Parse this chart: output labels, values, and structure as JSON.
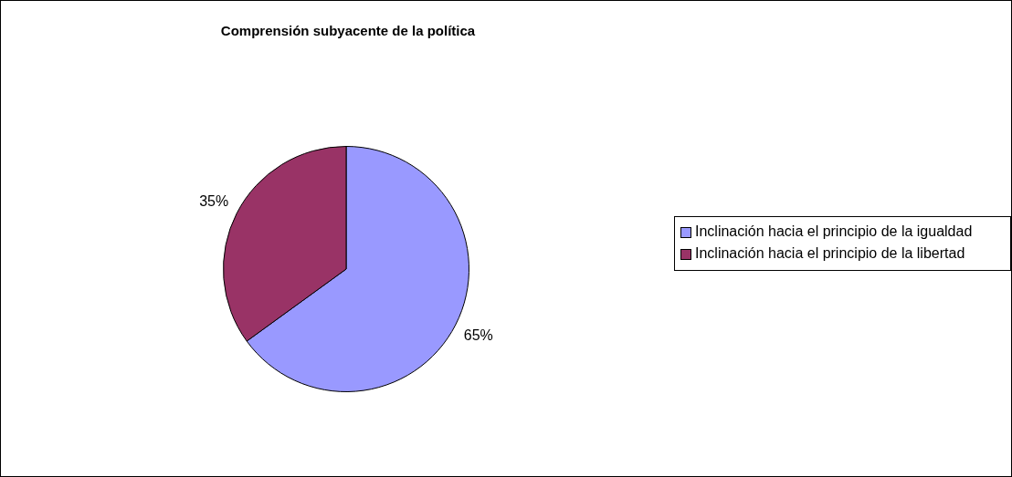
{
  "chart_data": {
    "type": "pie",
    "title": "Comprensión subyacente de la política",
    "categories": [
      "Inclinación hacia el principio de la igualdad",
      "Inclinación hacia el principio de la libertad"
    ],
    "values": [
      65,
      35
    ],
    "colors": [
      "#9999ff",
      "#993366"
    ],
    "value_labels": [
      "65%",
      "35%"
    ],
    "legend": "right"
  }
}
